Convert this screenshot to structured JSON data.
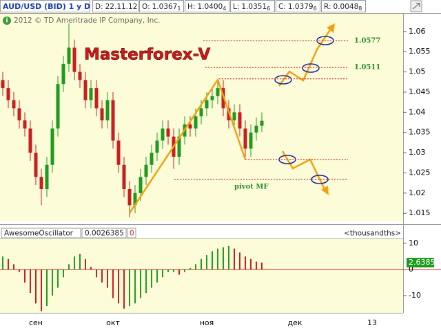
{
  "header": {
    "symbol": "AUD/USD (BID) 1 y D",
    "fields": [
      {
        "label": "D:",
        "value": "22.11.12",
        "pip": null
      },
      {
        "label": "O:",
        "value": "1.0367",
        "pip": "1"
      },
      {
        "label": "H:",
        "value": "1.0400",
        "pip": "4"
      },
      {
        "label": "L:",
        "value": "1.0351",
        "pip": "6"
      },
      {
        "label": "C:",
        "value": "1.0379",
        "pip": "6"
      },
      {
        "label": "R:",
        "value": "0.0048",
        "pip": "8"
      }
    ],
    "copyright": "2012 © TD Ameritrade IP Company, Inc."
  },
  "chart_data": [
    {
      "type": "candlestick",
      "annotation": "Masterforex-V",
      "categories": [
        null,
        null,
        null,
        null,
        null,
        null,
        "сен",
        null,
        null,
        null,
        null,
        null,
        null,
        null,
        null,
        null,
        null,
        null,
        null,
        null,
        "окт",
        null,
        null,
        null,
        null,
        null,
        null,
        null,
        null,
        null,
        null,
        null,
        null,
        null,
        null,
        null,
        null,
        "ноя",
        null,
        null,
        null,
        null,
        null,
        null,
        null,
        null,
        null,
        null,
        null,
        null,
        null,
        null,
        null,
        "дек",
        null,
        null,
        null,
        null,
        null,
        null,
        null,
        null,
        null,
        null,
        null,
        null,
        null,
        "13",
        null,
        null,
        null,
        null,
        null
      ],
      "open": [
        1.048,
        1.046,
        1.043,
        1.041,
        1.038,
        1.036,
        1.03,
        1.024,
        1.021,
        1.027,
        1.036,
        1.047,
        1.052,
        1.056,
        1.05,
        1.048,
        1.043,
        1.046,
        1.041,
        1.038,
        1.043,
        1.033,
        1.027,
        1.021,
        1.017,
        1.02,
        1.024,
        1.027,
        1.03,
        1.033,
        1.036,
        1.034,
        1.029,
        1.034,
        1.037,
        1.036,
        1.039,
        1.041,
        1.043,
        1.044,
        1.046,
        1.041,
        1.038,
        1.04,
        1.036,
        1.031,
        1.035,
        1.0367,
        null,
        null,
        null,
        null,
        null,
        null,
        null,
        null,
        null,
        null,
        null,
        null,
        null,
        null,
        null,
        null,
        null,
        null,
        null,
        null,
        null,
        null,
        null,
        null,
        null
      ],
      "high": [
        1.05,
        1.048,
        1.045,
        1.043,
        1.04,
        1.038,
        1.032,
        1.026,
        1.029,
        1.038,
        1.049,
        1.054,
        1.062,
        1.058,
        1.052,
        1.05,
        1.048,
        1.048,
        1.043,
        1.045,
        1.045,
        1.035,
        1.029,
        1.023,
        1.022,
        1.026,
        1.029,
        1.032,
        1.035,
        1.038,
        1.038,
        1.036,
        1.036,
        1.039,
        1.039,
        1.041,
        1.043,
        1.045,
        1.046,
        1.048,
        1.048,
        1.043,
        1.042,
        1.042,
        1.038,
        1.037,
        1.0387,
        1.04,
        null,
        null,
        null,
        null,
        null,
        null,
        null,
        null,
        null,
        null,
        null,
        null,
        null,
        null,
        null,
        null,
        null,
        null,
        null,
        null,
        null,
        null,
        null,
        null,
        null
      ],
      "low": [
        1.044,
        1.041,
        1.039,
        1.036,
        1.034,
        1.028,
        1.022,
        1.017,
        1.019,
        1.025,
        1.034,
        1.045,
        1.05,
        1.048,
        1.046,
        1.041,
        1.041,
        1.039,
        1.036,
        1.036,
        1.031,
        1.025,
        1.019,
        1.014,
        1.015,
        1.018,
        1.022,
        1.025,
        1.028,
        1.031,
        1.032,
        1.026,
        1.027,
        1.032,
        1.034,
        1.034,
        1.037,
        1.039,
        1.041,
        1.042,
        1.039,
        1.036,
        1.036,
        1.034,
        1.029,
        1.029,
        1.033,
        1.0351,
        null,
        null,
        null,
        null,
        null,
        null,
        null,
        null,
        null,
        null,
        null,
        null,
        null,
        null,
        null,
        null,
        null,
        null,
        null,
        null,
        null,
        null,
        null,
        null,
        null
      ],
      "close": [
        1.046,
        1.043,
        1.041,
        1.038,
        1.036,
        1.03,
        1.024,
        1.021,
        1.027,
        1.036,
        1.047,
        1.052,
        1.056,
        1.05,
        1.048,
        1.043,
        1.046,
        1.041,
        1.038,
        1.043,
        1.033,
        1.027,
        1.021,
        1.017,
        1.02,
        1.024,
        1.027,
        1.03,
        1.033,
        1.036,
        1.034,
        1.029,
        1.034,
        1.037,
        1.036,
        1.039,
        1.041,
        1.043,
        1.044,
        1.046,
        1.041,
        1.038,
        1.04,
        1.036,
        1.031,
        1.035,
        1.0367,
        1.0379,
        null,
        null,
        null,
        null,
        null,
        null,
        null,
        null,
        null,
        null,
        null,
        null,
        null,
        null,
        null,
        null,
        null,
        null,
        null,
        null,
        null,
        null,
        null,
        null,
        null
      ],
      "up_color": "#1e9a1e",
      "down_color": "#c81e1e",
      "ylim": [
        1.013,
        1.0644
      ],
      "yticks": [
        1.015,
        1.02,
        1.025,
        1.03,
        1.035,
        1.04,
        1.045,
        1.05,
        1.055,
        1.06
      ],
      "levels": [
        1.0577,
        1.0511,
        1.0483,
        1.0283,
        1.0234
      ],
      "pivot_label": "pivot MF",
      "level_color": "#e03030",
      "grid": false
    },
    {
      "type": "bar",
      "name": "AwesomeOscillator",
      "header_value": "0.0026385",
      "flag": "0",
      "units": "<thousandths>",
      "values": [
        5,
        4,
        2,
        -1,
        -5,
        -9,
        -13,
        -16,
        -14,
        -10,
        -7,
        -3,
        2,
        5,
        6,
        4,
        1,
        -3,
        -5,
        -7,
        -11,
        -13,
        -15,
        -14,
        -13,
        -11,
        -9,
        -7,
        -5,
        -3,
        -1,
        -1,
        -2,
        -1,
        0.5,
        2,
        4,
        5.5,
        7,
        8,
        8.5,
        9,
        8,
        6.5,
        5,
        4,
        3,
        2.6385,
        null,
        null,
        null,
        null,
        null,
        null,
        null,
        null,
        null,
        null,
        null,
        null,
        null,
        null,
        null,
        null,
        null,
        null,
        null,
        null,
        null,
        null,
        null,
        null,
        null
      ],
      "up_color": "#1e9a1e",
      "down_color": "#c81e1e",
      "zero_color": "#d02020",
      "ylim": [
        -16.6,
        12.1
      ],
      "yticks": [
        10,
        0,
        -10
      ]
    }
  ]
}
